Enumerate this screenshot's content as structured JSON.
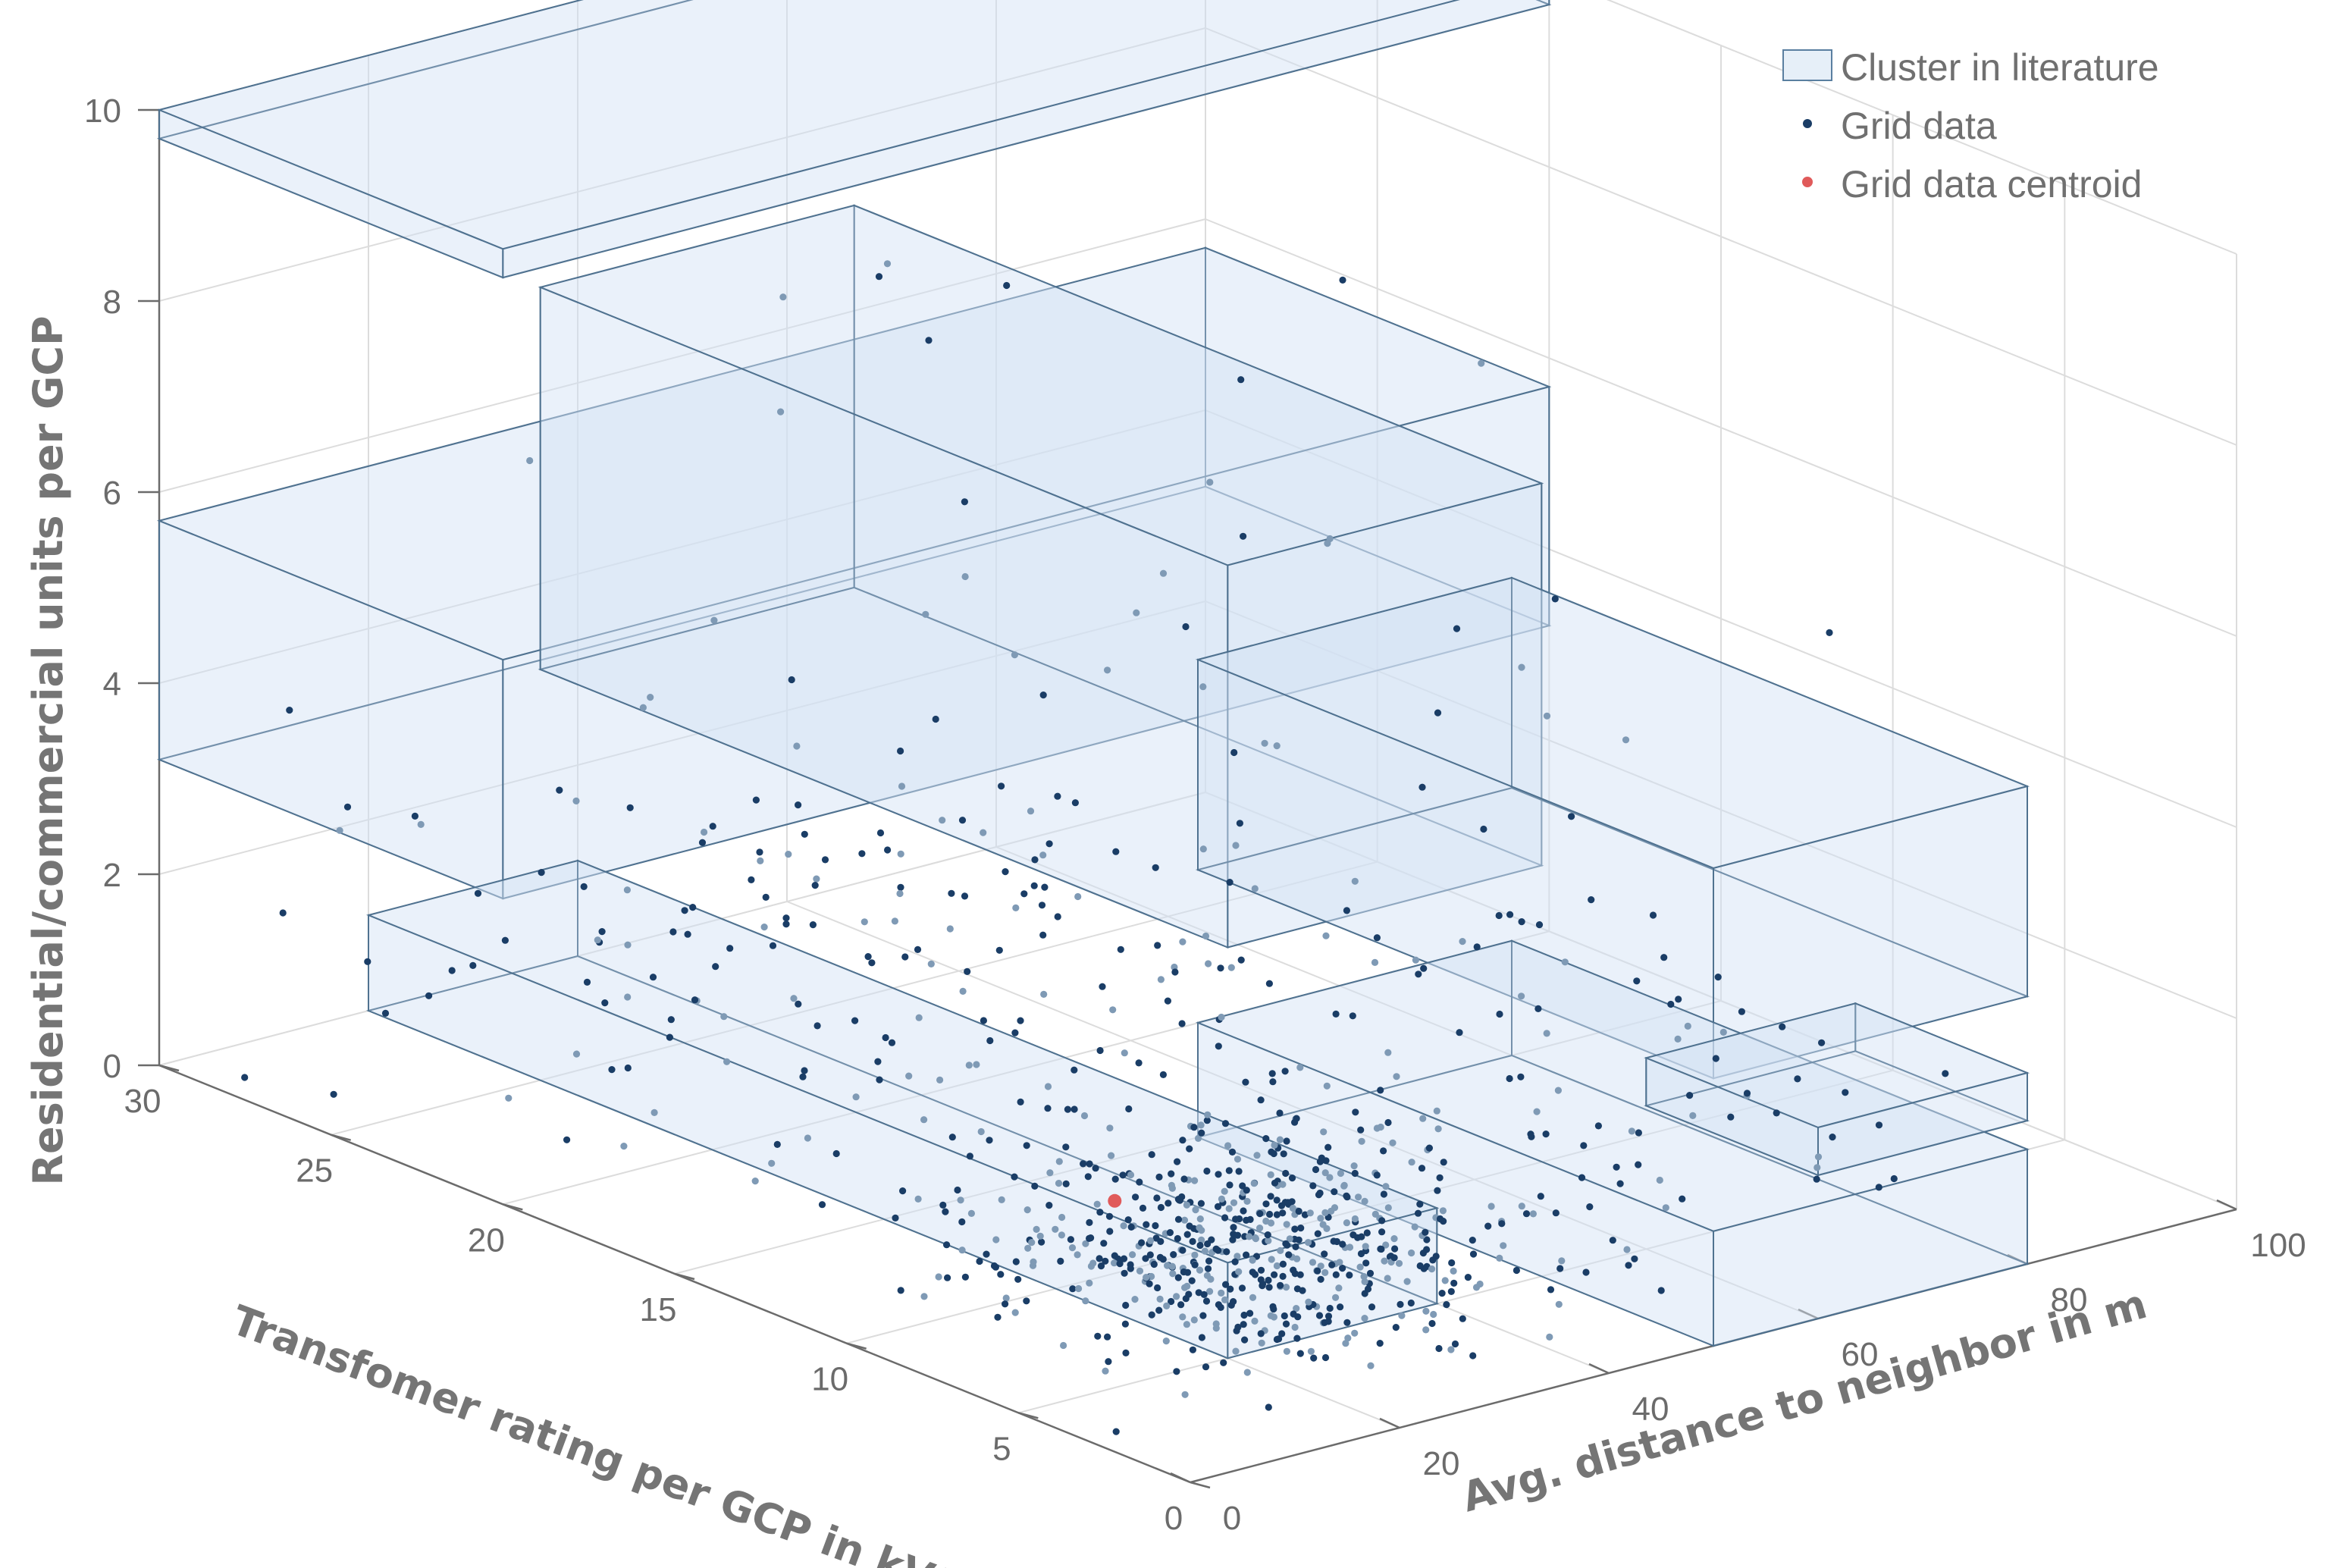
{
  "chart_data": {
    "type": "scatter",
    "subtype": "3d-scatter-with-cluster-boxes",
    "xlabel": "Transfomer rating per GCP in kVA",
    "ylabel": "Avg. distance to neighbor in m",
    "zlabel": "Residential/commercial units per GCP",
    "xlim": [
      0,
      30
    ],
    "ylim": [
      0,
      100
    ],
    "zlim": [
      0,
      10
    ],
    "x_ticks": [
      "0",
      "5",
      "10",
      "15",
      "20",
      "25",
      "30"
    ],
    "y_ticks": [
      "0",
      "20",
      "40",
      "60",
      "80",
      "100"
    ],
    "z_ticks": [
      "0",
      "2",
      "4",
      "6",
      "8",
      "10"
    ],
    "grid": true,
    "legend_position": "top-right",
    "legend": {
      "box": "Cluster in literature",
      "points": "Grid data",
      "centroid": "Grid data centroid"
    },
    "colors": {
      "box_fill": "#d4e4f4",
      "box_edge": "#4a6d8c",
      "points_dark": "#1a3d66",
      "points_light": "#7f9ab5",
      "centroid": "#e05a5a"
    },
    "clusters": [
      {
        "x": [
          20,
          30
        ],
        "y": [
          0,
          100
        ],
        "z": [
          9.7,
          10
        ]
      },
      {
        "x": [
          20,
          30
        ],
        "y": [
          0,
          100
        ],
        "z": [
          3.2,
          5.7
        ]
      },
      {
        "x": [
          5,
          25
        ],
        "y": [
          20,
          50
        ],
        "z": [
          4.3,
          8.3
        ]
      },
      {
        "x": [
          0,
          15
        ],
        "y": [
          50,
          80
        ],
        "z": [
          2.8,
          5.0
        ]
      },
      {
        "x": [
          0,
          15
        ],
        "y": [
          50,
          80
        ],
        "z": [
          0,
          1.2
        ]
      },
      {
        "x": [
          5,
          30
        ],
        "y": [
          20,
          40
        ],
        "z": [
          0,
          1.0
        ]
      },
      {
        "x": [
          0,
          5
        ],
        "y": [
          60,
          80
        ],
        "z": [
          1.5,
          2.0
        ]
      }
    ],
    "centroid": {
      "x": 9.2,
      "y": 23.0,
      "z": 0.95
    },
    "grid_data_summary": {
      "n_points_approx": 900,
      "x_range": [
        0,
        30
      ],
      "y_range": [
        0,
        100
      ],
      "z_range": [
        0,
        9.3
      ],
      "dense_region": {
        "x": [
          3,
          12
        ],
        "y": [
          15,
          45
        ],
        "z": [
          0,
          1.5
        ]
      }
    }
  }
}
